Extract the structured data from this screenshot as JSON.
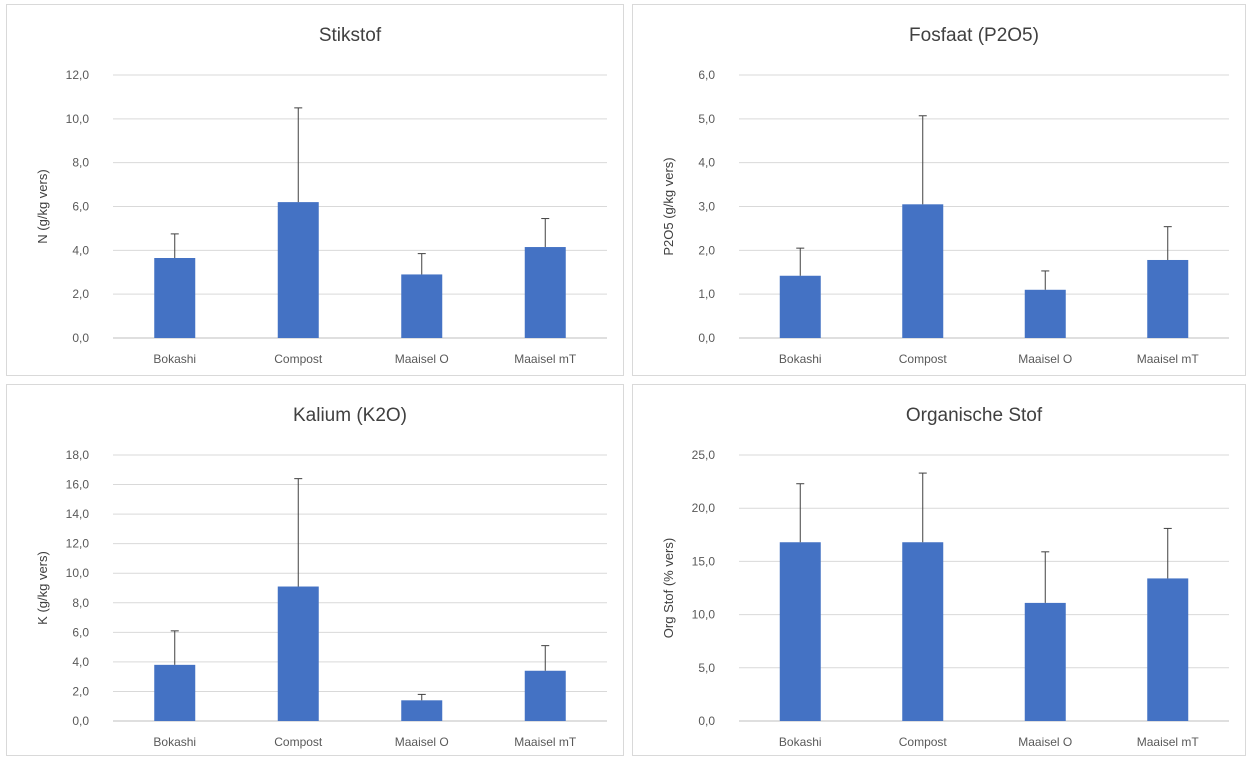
{
  "chart_data": [
    {
      "type": "bar",
      "title": "Stikstof",
      "ylabel": "N (g/kg vers)",
      "xlabel": "",
      "categories": [
        "Bokashi",
        "Compost",
        "Maaisel O",
        "Maaisel mT"
      ],
      "values": [
        3.65,
        6.2,
        2.9,
        4.15
      ],
      "error_plus": [
        1.1,
        4.3,
        0.95,
        1.3
      ],
      "ylim": [
        0,
        12
      ],
      "yticks": [
        "0,0",
        "2,0",
        "4,0",
        "6,0",
        "8,0",
        "10,0",
        "12,0"
      ],
      "grid": true,
      "color": "#4472C4"
    },
    {
      "type": "bar",
      "title": "Fosfaat (P2O5)",
      "ylabel": "P2O5 (g/kg vers)",
      "xlabel": "",
      "categories": [
        "Bokashi",
        "Compost",
        "Maaisel O",
        "Maaisel mT"
      ],
      "values": [
        1.42,
        3.05,
        1.1,
        1.78
      ],
      "error_plus": [
        0.63,
        2.02,
        0.43,
        0.76
      ],
      "ylim": [
        0,
        6
      ],
      "yticks": [
        "0,0",
        "1,0",
        "2,0",
        "3,0",
        "4,0",
        "5,0",
        "6,0"
      ],
      "grid": true,
      "color": "#4472C4"
    },
    {
      "type": "bar",
      "title": "Kalium (K2O)",
      "ylabel": "K (g/kg vers)",
      "xlabel": "",
      "categories": [
        "Bokashi",
        "Compost",
        "Maaisel O",
        "Maaisel mT"
      ],
      "values": [
        3.8,
        9.1,
        1.4,
        3.4
      ],
      "error_plus": [
        2.3,
        7.3,
        0.4,
        1.7
      ],
      "ylim": [
        0,
        18
      ],
      "yticks": [
        "0,0",
        "2,0",
        "4,0",
        "6,0",
        "8,0",
        "10,0",
        "12,0",
        "14,0",
        "16,0",
        "18,0"
      ],
      "grid": true,
      "color": "#4472C4"
    },
    {
      "type": "bar",
      "title": "Organische Stof",
      "ylabel": "Org Stof (% vers)",
      "xlabel": "",
      "categories": [
        "Bokashi",
        "Compost",
        "Maaisel O",
        "Maaisel mT"
      ],
      "values": [
        16.8,
        16.8,
        11.1,
        13.4
      ],
      "error_plus": [
        5.5,
        6.5,
        4.8,
        4.7
      ],
      "ylim": [
        0,
        25
      ],
      "yticks": [
        "0,0",
        "5,0",
        "10,0",
        "15,0",
        "20,0",
        "25,0"
      ],
      "grid": true,
      "color": "#4472C4"
    }
  ]
}
